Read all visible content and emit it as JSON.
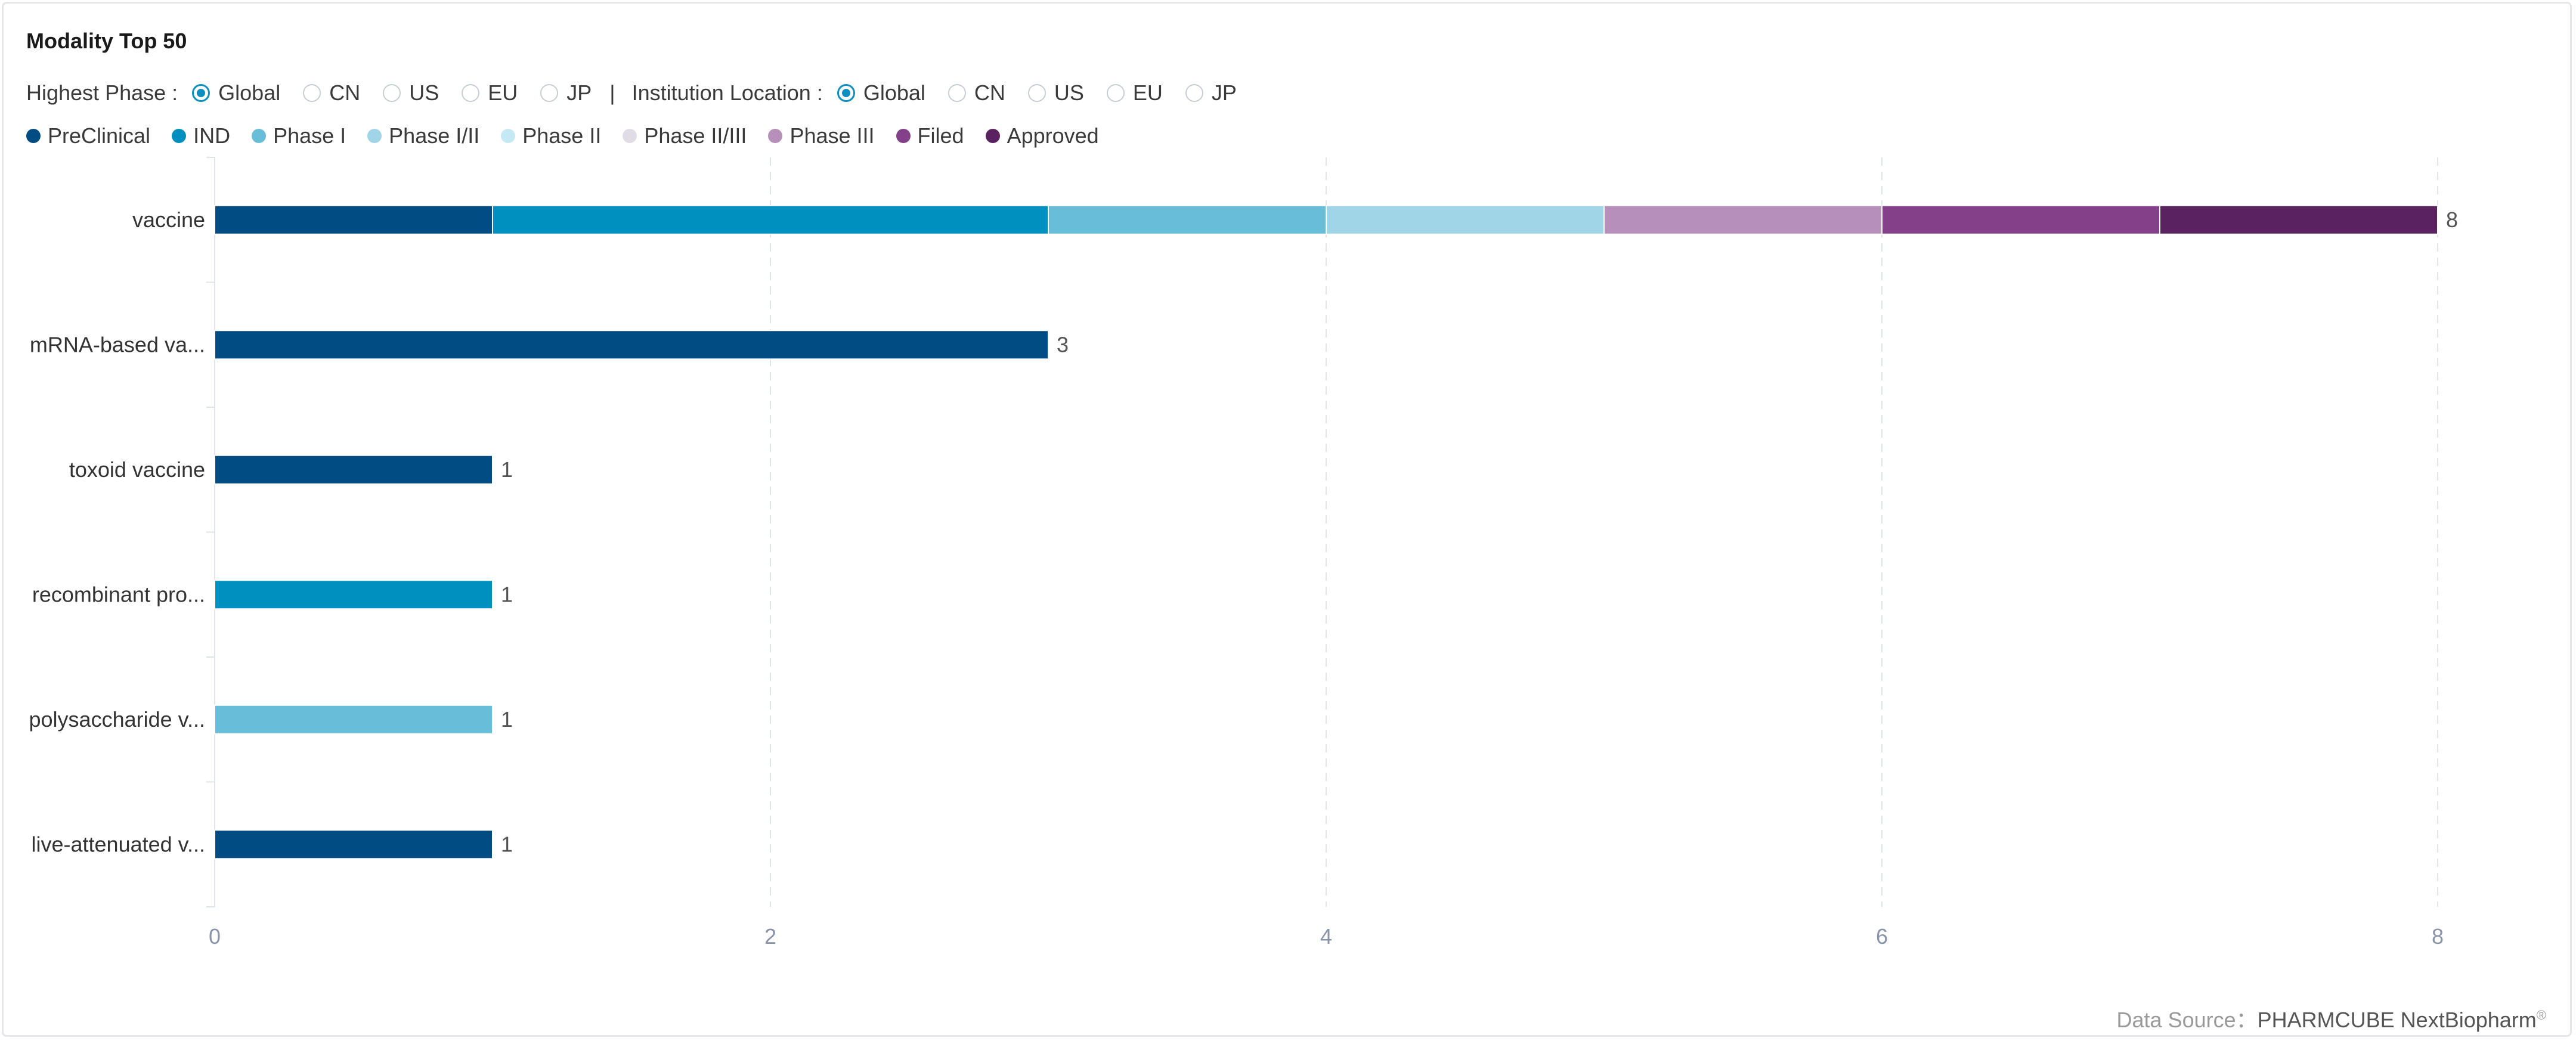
{
  "title": "Modality Top 50",
  "filters": {
    "highest_phase_label": "Highest Phase :",
    "highest_phase_options": [
      "Global",
      "CN",
      "US",
      "EU",
      "JP"
    ],
    "highest_phase_selected": "Global",
    "separator": "|",
    "institution_label": "Institution Location :",
    "institution_options": [
      "Global",
      "CN",
      "US",
      "EU",
      "JP"
    ],
    "institution_selected": "Global"
  },
  "footer": {
    "label": "Data Source：",
    "brand": "PHARMCUBE NextBiopharm",
    "mark": "®"
  },
  "chart_data": {
    "type": "bar",
    "orientation": "horizontal",
    "stacked": true,
    "categories": [
      "vaccine",
      "mRNA-based va...",
      "toxoid vaccine",
      "recombinant pro...",
      "polysaccharide v...",
      "live-attenuated v..."
    ],
    "series": [
      {
        "name": "PreClinical",
        "color": "#004c83",
        "values": [
          1,
          3,
          1,
          0,
          0,
          1
        ]
      },
      {
        "name": "IND",
        "color": "#0090bf",
        "values": [
          2,
          0,
          0,
          1,
          0,
          0
        ]
      },
      {
        "name": "Phase I",
        "color": "#68bed9",
        "values": [
          1,
          0,
          0,
          0,
          1,
          0
        ]
      },
      {
        "name": "Phase I/II",
        "color": "#9fd5e7",
        "values": [
          1,
          0,
          0,
          0,
          0,
          0
        ]
      },
      {
        "name": "Phase II",
        "color": "#c5e9f2",
        "values": [
          0,
          0,
          0,
          0,
          0,
          0
        ]
      },
      {
        "name": "Phase II/III",
        "color": "#e0dce6",
        "values": [
          0,
          0,
          0,
          0,
          0,
          0
        ]
      },
      {
        "name": "Phase III",
        "color": "#b68fba",
        "values": [
          1,
          0,
          0,
          0,
          0,
          0
        ]
      },
      {
        "name": "Filed",
        "color": "#84418a",
        "values": [
          1,
          0,
          0,
          0,
          0,
          0
        ]
      },
      {
        "name": "Approved",
        "color": "#5a2260",
        "values": [
          1,
          0,
          0,
          0,
          0,
          0
        ]
      }
    ],
    "totals": [
      8,
      3,
      1,
      1,
      1,
      1
    ],
    "xlim": [
      0,
      8
    ],
    "xticks": [
      0,
      2,
      4,
      6,
      8
    ],
    "grid": "vertical dashed",
    "legend_position": "top-left"
  }
}
